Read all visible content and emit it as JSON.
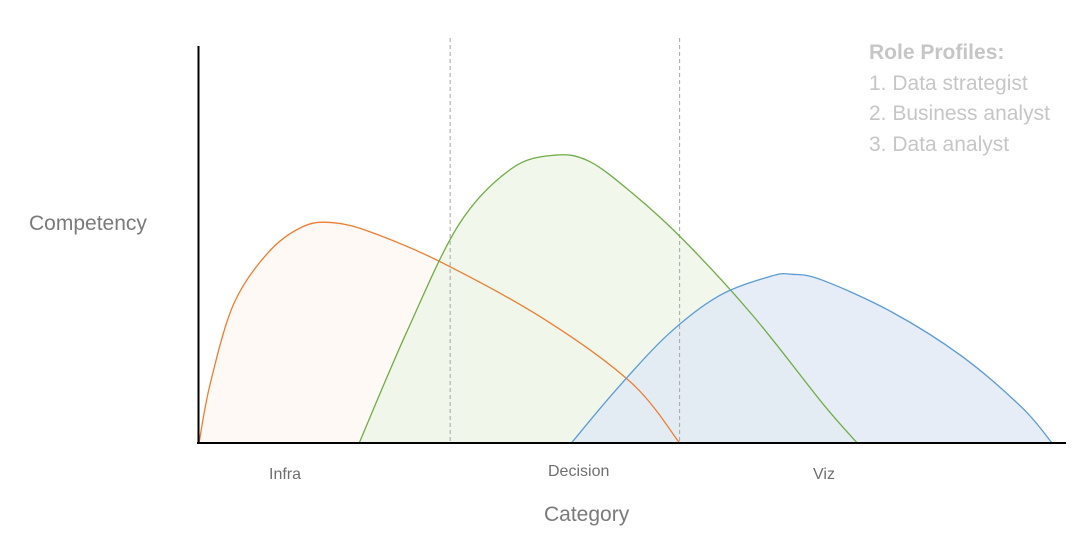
{
  "chart_data": {
    "type": "area",
    "ylabel": "Competency",
    "xlabel": "Category",
    "categories": [
      "Infra",
      "Decision",
      "Viz"
    ],
    "x_range": [
      0,
      100
    ],
    "y_range": [
      0,
      100
    ],
    "dividers_x": [
      29,
      55.5
    ],
    "legend": {
      "title": "Role Profiles:",
      "items": [
        "1. Data strategist",
        "2. Business analyst",
        "3. Data analyst"
      ],
      "placement": "top-right"
    },
    "series": [
      {
        "color": "#ED7D31",
        "fill": "#FFF8F3",
        "points": [
          [
            0,
            0
          ],
          [
            1.3,
            15
          ],
          [
            4,
            35
          ],
          [
            8,
            48
          ],
          [
            12,
            54.5
          ],
          [
            15.5,
            55.5
          ],
          [
            20,
            53
          ],
          [
            28,
            45.5
          ],
          [
            40,
            31
          ],
          [
            50,
            15
          ],
          [
            55.5,
            0
          ]
        ]
      },
      {
        "color": "#70AD47",
        "fill": "#EEF6E8",
        "points": [
          [
            18.5,
            0
          ],
          [
            24,
            28
          ],
          [
            30,
            55
          ],
          [
            36,
            69
          ],
          [
            41,
            72.5
          ],
          [
            45,
            71
          ],
          [
            50,
            63
          ],
          [
            56,
            51
          ],
          [
            64,
            32
          ],
          [
            72,
            10
          ],
          [
            76,
            0
          ]
        ]
      },
      {
        "color": "#5B9BD5",
        "fill": "#E2EAF5",
        "points": [
          [
            43,
            0
          ],
          [
            48,
            13
          ],
          [
            54,
            27
          ],
          [
            60,
            37
          ],
          [
            66,
            42
          ],
          [
            68.5,
            42.5
          ],
          [
            72,
            41
          ],
          [
            80,
            33
          ],
          [
            88,
            22
          ],
          [
            95,
            9
          ],
          [
            98.5,
            0
          ]
        ]
      }
    ]
  }
}
